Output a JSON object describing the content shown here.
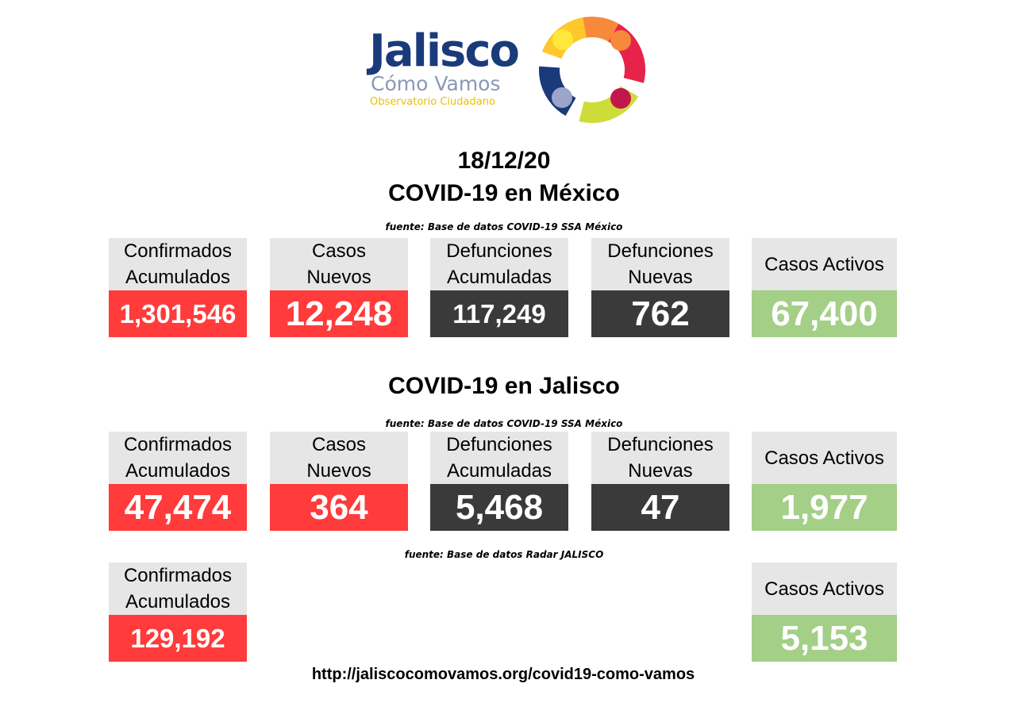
{
  "logo": {
    "brand": "Jalisco",
    "subtitle": "Cómo Vamos",
    "tagline": "Observatorio Ciudadano",
    "ring_colors": [
      "#ffc72c",
      "#f68a3a",
      "#e8234a",
      "#cddc39",
      "#9aa5c9",
      "#1a3a7a"
    ]
  },
  "date": "18/12/20",
  "mexico": {
    "title": "COVID-19 en México",
    "source": "fuente: Base de datos COVID-19 SSA México",
    "cards": [
      {
        "label": "Confirmados\nAcumulados",
        "value": "1,301,546"
      },
      {
        "label": "Casos\nNuevos",
        "value": "12,248"
      },
      {
        "label": "Defunciones\nAcumuladas",
        "value": "117,249"
      },
      {
        "label": "Defunciones\nNuevas",
        "value": "762"
      },
      {
        "label": "Casos Activos",
        "value": "67,400"
      }
    ]
  },
  "jalisco": {
    "title": "COVID-19 en Jalisco",
    "source": "fuente: Base de datos COVID-19 SSA México",
    "cards": [
      {
        "label": "Confirmados\nAcumulados",
        "value": "47,474"
      },
      {
        "label": "Casos\nNuevos",
        "value": "364"
      },
      {
        "label": "Defunciones\nAcumuladas",
        "value": "5,468"
      },
      {
        "label": "Defunciones\nNuevas",
        "value": "47"
      },
      {
        "label": "Casos Activos",
        "value": "1,977"
      }
    ]
  },
  "radar": {
    "source": "fuente: Base de datos Radar JALISCO",
    "cards": [
      {
        "label": "Confirmados\nAcumulados",
        "value": "129,192"
      },
      {
        "label": "Casos Activos",
        "value": "5,153"
      }
    ]
  },
  "colors": {
    "red": "#ff3b3b",
    "dark": "#3a3a3a",
    "green": "#a3cf87",
    "label_bg": "#e6e6e6"
  },
  "footer": {
    "url": "http://jaliscocomovamos.org/covid19-como-vamos"
  }
}
